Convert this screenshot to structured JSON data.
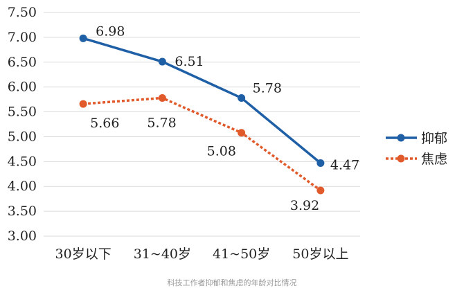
{
  "chart_data": {
    "type": "line",
    "title": "",
    "xlabel": "",
    "ylabel": "",
    "categories": [
      "30岁以下",
      "31~40岁",
      "41~50岁",
      "50岁以上"
    ],
    "series": [
      {
        "name": "抑郁",
        "values": [
          6.98,
          6.51,
          5.78,
          4.47
        ],
        "color": "#1f5fa6",
        "style": "solid",
        "marker": "circle"
      },
      {
        "name": "焦虑",
        "values": [
          5.66,
          5.78,
          5.08,
          3.92
        ],
        "color": "#e05a2b",
        "style": "dotted",
        "marker": "circle"
      }
    ],
    "ylim": [
      3.0,
      7.5
    ],
    "yticks": [
      "3.00",
      "3.50",
      "4.00",
      "4.50",
      "5.00",
      "5.50",
      "6.00",
      "6.50",
      "7.00",
      "7.50"
    ],
    "grid": true,
    "legend_position": "right"
  },
  "caption": "科技工作者抑郁和焦虑的年龄对比情况"
}
